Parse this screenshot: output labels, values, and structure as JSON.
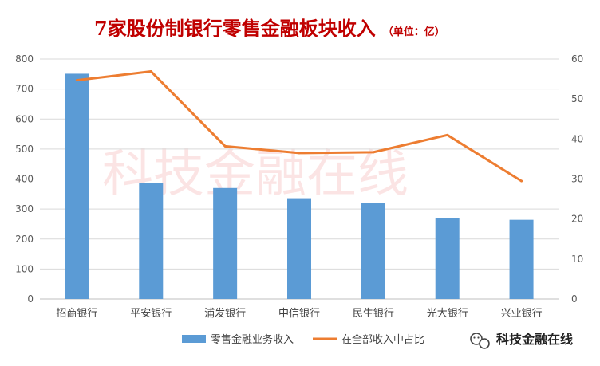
{
  "chart_data": {
    "type": "bar",
    "title": "7家股份制银行零售金融板块收入",
    "title_unit": "（单位：亿）",
    "categories": [
      "招商银行",
      "平安银行",
      "浦发银行",
      "中信银行",
      "民生银行",
      "光大银行",
      "兴业银行"
    ],
    "series": [
      {
        "name": "零售金融业务收入",
        "type": "bar",
        "axis": "left",
        "color": "#5b9bd5",
        "values": [
          751,
          386,
          370,
          336,
          320,
          271,
          264
        ]
      },
      {
        "name": "在全部收入中占比",
        "type": "line",
        "axis": "right",
        "color": "#ed7d31",
        "values": [
          54.7,
          56.9,
          38.2,
          36.5,
          36.7,
          41.0,
          29.5
        ]
      }
    ],
    "ylim_left": [
      0,
      800
    ],
    "yticks_left": [
      "0",
      "100",
      "200",
      "300",
      "400",
      "500",
      "600",
      "700",
      "800"
    ],
    "ylim_right": [
      0,
      60
    ],
    "yticks_right": [
      "0",
      "10",
      "20",
      "30",
      "40",
      "50",
      "60"
    ],
    "grid": true,
    "legend_position": "bottom",
    "title_color": "#c00000"
  },
  "watermark": "科技金融在线",
  "brand": {
    "icon": "wechat-icon",
    "label": "科技金融在线"
  }
}
